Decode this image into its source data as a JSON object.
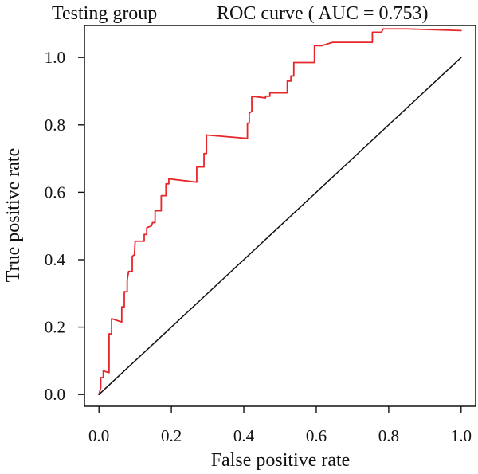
{
  "chart_data": {
    "type": "line",
    "title_left": "Testing group",
    "title_right": "ROC curve ( AUC = 0.753)",
    "xlabel": "False positive rate",
    "ylabel": "True positive rate",
    "xlim": [
      -0.04,
      1.04
    ],
    "ylim": [
      -0.035,
      1.095
    ],
    "x_ticks": [
      0.0,
      0.2,
      0.4,
      0.6,
      0.8,
      1.0
    ],
    "x_tick_labels": [
      "0.0",
      "0.2",
      "0.4",
      "0.6",
      "0.8",
      "1.0"
    ],
    "y_ticks": [
      0.0,
      0.2,
      0.4,
      0.6,
      0.8,
      1.0
    ],
    "y_tick_labels": [
      "0.0",
      "0.2",
      "0.4",
      "0.6",
      "0.8",
      "1.0"
    ],
    "grid": false,
    "series": [
      {
        "color": "#e8262a",
        "points": [
          [
            0.0,
            0.0
          ],
          [
            0.005,
            0.02
          ],
          [
            0.005,
            0.05
          ],
          [
            0.012,
            0.05
          ],
          [
            0.012,
            0.07
          ],
          [
            0.028,
            0.065
          ],
          [
            0.028,
            0.18
          ],
          [
            0.035,
            0.18
          ],
          [
            0.035,
            0.225
          ],
          [
            0.063,
            0.215
          ],
          [
            0.063,
            0.26
          ],
          [
            0.07,
            0.26
          ],
          [
            0.07,
            0.305
          ],
          [
            0.078,
            0.305
          ],
          [
            0.078,
            0.34
          ],
          [
            0.082,
            0.365
          ],
          [
            0.092,
            0.365
          ],
          [
            0.092,
            0.41
          ],
          [
            0.098,
            0.415
          ],
          [
            0.1,
            0.455
          ],
          [
            0.125,
            0.455
          ],
          [
            0.125,
            0.475
          ],
          [
            0.132,
            0.475
          ],
          [
            0.132,
            0.495
          ],
          [
            0.145,
            0.5
          ],
          [
            0.148,
            0.51
          ],
          [
            0.155,
            0.51
          ],
          [
            0.155,
            0.545
          ],
          [
            0.172,
            0.545
          ],
          [
            0.172,
            0.59
          ],
          [
            0.185,
            0.59
          ],
          [
            0.185,
            0.625
          ],
          [
            0.193,
            0.625
          ],
          [
            0.193,
            0.64
          ],
          [
            0.27,
            0.63
          ],
          [
            0.27,
            0.675
          ],
          [
            0.29,
            0.675
          ],
          [
            0.29,
            0.715
          ],
          [
            0.297,
            0.715
          ],
          [
            0.297,
            0.77
          ],
          [
            0.41,
            0.76
          ],
          [
            0.41,
            0.805
          ],
          [
            0.415,
            0.805
          ],
          [
            0.415,
            0.835
          ],
          [
            0.422,
            0.84
          ],
          [
            0.422,
            0.885
          ],
          [
            0.46,
            0.88
          ],
          [
            0.46,
            0.885
          ],
          [
            0.472,
            0.885
          ],
          [
            0.472,
            0.895
          ],
          [
            0.52,
            0.895
          ],
          [
            0.52,
            0.93
          ],
          [
            0.53,
            0.93
          ],
          [
            0.53,
            0.945
          ],
          [
            0.538,
            0.945
          ],
          [
            0.538,
            0.985
          ],
          [
            0.595,
            0.985
          ],
          [
            0.595,
            1.035
          ],
          [
            0.615,
            1.035
          ],
          [
            0.63,
            1.04
          ],
          [
            0.645,
            1.045
          ],
          [
            0.755,
            1.045
          ],
          [
            0.755,
            1.075
          ],
          [
            0.78,
            1.075
          ],
          [
            0.785,
            1.085
          ],
          [
            0.85,
            1.085
          ],
          [
            1.0,
            1.08
          ]
        ]
      },
      {
        "color": "#111111",
        "points": [
          [
            0.0,
            0.0
          ],
          [
            1.0,
            1.0
          ]
        ]
      }
    ]
  }
}
